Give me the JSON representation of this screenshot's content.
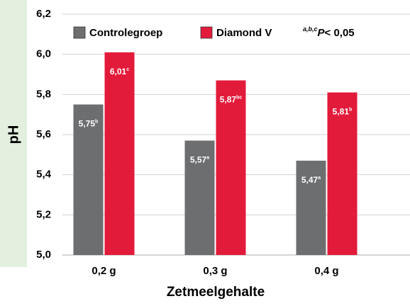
{
  "chart_data": {
    "type": "bar",
    "y_label": "pH",
    "x_label": "Zetmeelgehalte",
    "categories": [
      "0,2 g",
      "0,3 g",
      "0,4 g"
    ],
    "series": [
      {
        "name": "Controlegroep",
        "color": "#6d6e70",
        "values": [
          5.75,
          5.57,
          5.47
        ],
        "value_labels": [
          "5,75",
          "5,57",
          "5,47"
        ],
        "letters": [
          "b",
          "a",
          "a"
        ]
      },
      {
        "name": "Diamond V",
        "color": "#e31b3b",
        "values": [
          6.01,
          5.87,
          5.81
        ],
        "value_labels": [
          "6,01",
          "5,87",
          "5,81"
        ],
        "letters": [
          "c",
          "bc",
          "b"
        ]
      }
    ],
    "annotation": {
      "superscript": "a,b,c",
      "symbol": "P",
      "text": "< 0,05"
    },
    "ylim": [
      5.0,
      6.2
    ],
    "yticks": [
      {
        "value": 5.0,
        "label": "5,0"
      },
      {
        "value": 5.2,
        "label": "5,2"
      },
      {
        "value": 5.4,
        "label": "5,4"
      },
      {
        "value": 5.6,
        "label": "5,6"
      },
      {
        "value": 5.8,
        "label": "5,8"
      },
      {
        "value": 6.0,
        "label": "6,0"
      },
      {
        "value": 6.2,
        "label": "6,2"
      }
    ],
    "grid": true
  }
}
